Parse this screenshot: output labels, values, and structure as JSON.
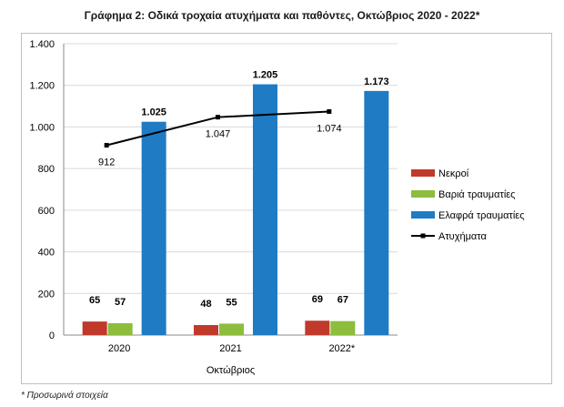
{
  "chart_data": {
    "type": "bar",
    "title": "Γράφημα 2: Οδικά τροχαία ατυχήματα και παθόντες, Οκτώβριος 2020 - 2022*",
    "xlabel": "Οκτώβριος",
    "ylabel": "",
    "categories": [
      "2020",
      "2021",
      "2022*"
    ],
    "ylim": [
      0,
      1400
    ],
    "yticks": [
      0,
      200,
      400,
      600,
      800,
      1000,
      1200,
      1400
    ],
    "ytick_labels": [
      "0",
      "200",
      "400",
      "600",
      "800",
      "1.000",
      "1.200",
      "1.400"
    ],
    "grid": true,
    "legend_position": "right",
    "series": [
      {
        "name": "Νεκροί",
        "kind": "bar",
        "color": "#c0392b",
        "values": [
          65,
          48,
          69
        ],
        "labels": [
          "65",
          "48",
          "69"
        ]
      },
      {
        "name": "Βαριά τραυματίες",
        "kind": "bar",
        "color": "#8cbd3c",
        "values": [
          57,
          55,
          67
        ],
        "labels": [
          "57",
          "55",
          "67"
        ]
      },
      {
        "name": "Ελαφρά τραυματίες",
        "kind": "bar",
        "color": "#1f7bc4",
        "values": [
          1025,
          1205,
          1173
        ],
        "labels": [
          "1.025",
          "1.205",
          "1.173"
        ]
      },
      {
        "name": "Ατυχήματα",
        "kind": "line",
        "color": "#000000",
        "values": [
          912,
          1047,
          1074
        ],
        "labels": [
          "912",
          "1.047",
          "1.074"
        ]
      }
    ]
  },
  "footnote": "* Προσωρινά στοιχεία"
}
